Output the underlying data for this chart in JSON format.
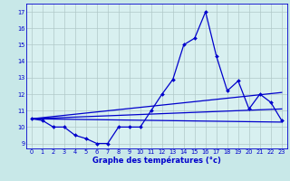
{
  "xlabel": "Graphe des températures (°c)",
  "background_color": "#c8e8e8",
  "plot_bg_color": "#d8f0f0",
  "grid_color": "#b0c8c8",
  "line_color": "#0000cc",
  "x_ticks": [
    0,
    1,
    2,
    3,
    4,
    5,
    6,
    7,
    8,
    9,
    10,
    11,
    12,
    13,
    14,
    15,
    16,
    17,
    18,
    19,
    20,
    21,
    22,
    23
  ],
  "y_ticks": [
    9,
    10,
    11,
    12,
    13,
    14,
    15,
    16,
    17
  ],
  "ylim": [
    8.7,
    17.5
  ],
  "xlim": [
    -0.5,
    23.5
  ],
  "series": [
    {
      "x": [
        0,
        1,
        2,
        3,
        4,
        5,
        6,
        7,
        8,
        9,
        10,
        11,
        12,
        13,
        14,
        15,
        16,
        17,
        18,
        19,
        20,
        21,
        22,
        23
      ],
      "y": [
        10.5,
        10.4,
        10.0,
        10.0,
        9.5,
        9.3,
        9.0,
        9.0,
        10.0,
        10.0,
        10.0,
        11.0,
        12.0,
        12.9,
        15.0,
        15.4,
        17.0,
        14.3,
        12.2,
        12.8,
        11.1,
        12.0,
        11.5,
        10.4
      ],
      "marker": "D",
      "markersize": 2.0,
      "linewidth": 0.9
    },
    {
      "x": [
        0,
        23
      ],
      "y": [
        10.5,
        10.3
      ],
      "marker": null,
      "linewidth": 0.9
    },
    {
      "x": [
        0,
        23
      ],
      "y": [
        10.5,
        12.1
      ],
      "marker": null,
      "linewidth": 0.9
    },
    {
      "x": [
        0,
        23
      ],
      "y": [
        10.5,
        11.1
      ],
      "marker": null,
      "linewidth": 0.9
    }
  ]
}
